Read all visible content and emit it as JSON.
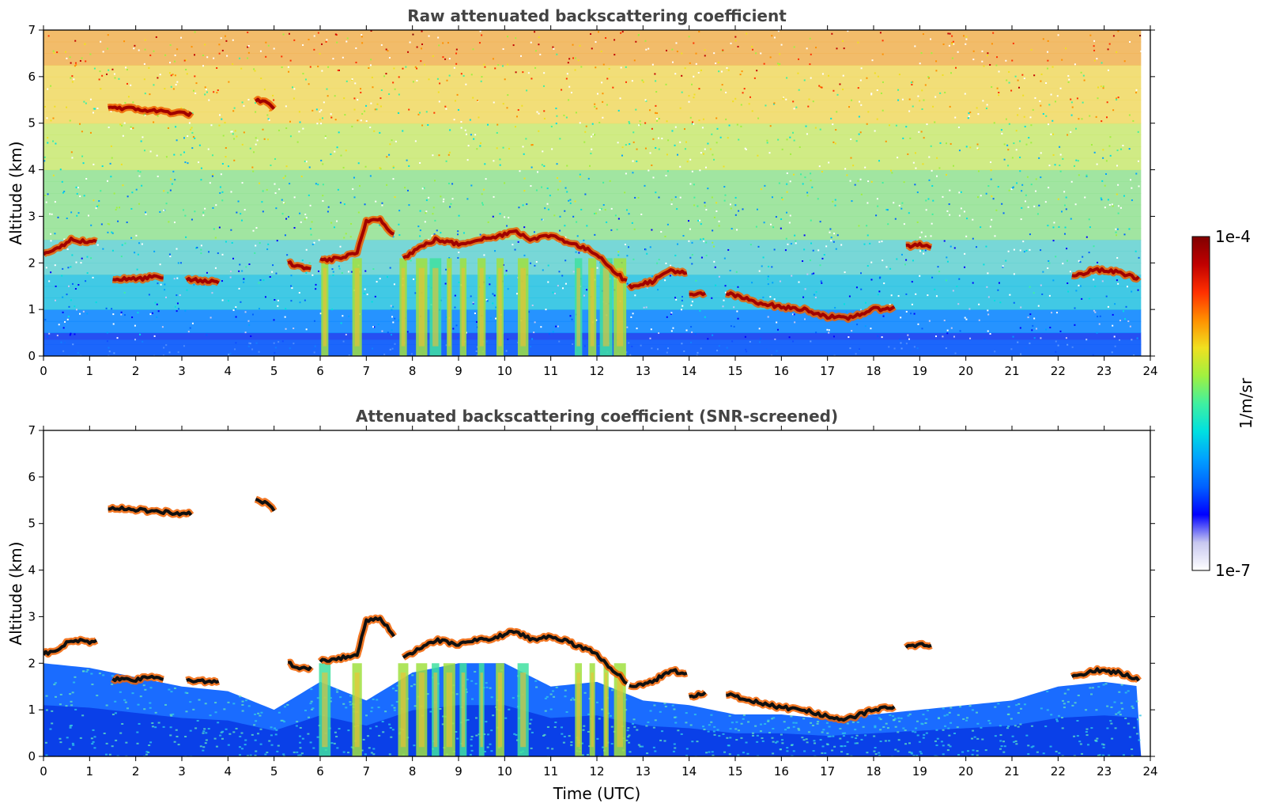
{
  "chart_data": [
    {
      "type": "heatmap",
      "title": "Raw attenuated backscattering coefficient",
      "xlabel": "",
      "ylabel": "Altitude (km)",
      "xlim": [
        0,
        24
      ],
      "ylim": [
        0,
        7
      ],
      "xticks": [
        "0",
        "1",
        "2",
        "3",
        "4",
        "5",
        "6",
        "7",
        "8",
        "9",
        "10",
        "11",
        "12",
        "13",
        "14",
        "15",
        "16",
        "17",
        "18",
        "19",
        "20",
        "21",
        "22",
        "23",
        "24"
      ],
      "yticks": [
        "0",
        "1",
        "2",
        "3",
        "4",
        "5",
        "6",
        "7"
      ],
      "data_extent_x": [
        0,
        23.8
      ],
      "cloud_layers": [
        {
          "t": [
            0.0,
            0.3,
            0.6,
            1.0,
            1.2
          ],
          "alt": [
            2.2,
            2.3,
            2.5,
            2.45,
            2.5
          ]
        },
        {
          "t": [
            1.5,
            2.0,
            2.4,
            2.6
          ],
          "alt": [
            1.65,
            1.65,
            1.7,
            1.65
          ]
        },
        {
          "t": [
            3.1,
            3.5,
            3.8
          ],
          "alt": [
            1.65,
            1.6,
            1.6
          ]
        },
        {
          "t": [
            1.4,
            2.0,
            2.6,
            3.2
          ],
          "alt": [
            5.35,
            5.3,
            5.25,
            5.2
          ]
        },
        {
          "t": [
            4.6,
            4.8,
            5.0
          ],
          "alt": [
            5.5,
            5.45,
            5.3
          ]
        },
        {
          "t": [
            5.3,
            5.6,
            5.8
          ],
          "alt": [
            2.0,
            1.9,
            1.9
          ]
        },
        {
          "t": [
            6.0,
            6.4,
            6.8,
            7.0,
            7.3,
            7.6
          ],
          "alt": [
            2.05,
            2.1,
            2.2,
            2.9,
            2.95,
            2.6
          ]
        },
        {
          "t": [
            7.8,
            8.1,
            8.5,
            9.0,
            9.4,
            9.8,
            10.2,
            10.6,
            11.0,
            11.5,
            12.0,
            12.4,
            12.7
          ],
          "alt": [
            2.1,
            2.3,
            2.5,
            2.4,
            2.5,
            2.55,
            2.7,
            2.5,
            2.6,
            2.4,
            2.2,
            1.8,
            1.55
          ]
        },
        {
          "t": [
            12.7,
            13.2,
            13.6,
            14.0
          ],
          "alt": [
            1.5,
            1.6,
            1.85,
            1.75
          ]
        },
        {
          "t": [
            14.0,
            14.4
          ],
          "alt": [
            1.3,
            1.35
          ]
        },
        {
          "t": [
            14.8,
            15.5,
            16.0,
            16.5,
            17.0,
            17.4,
            18.0,
            18.5
          ],
          "alt": [
            1.35,
            1.15,
            1.05,
            1.0,
            0.85,
            0.8,
            1.0,
            1.05
          ]
        },
        {
          "t": [
            18.7,
            19.0,
            19.3
          ],
          "alt": [
            2.35,
            2.4,
            2.35
          ]
        },
        {
          "t": [
            22.3,
            22.8,
            23.3,
            23.8
          ],
          "alt": [
            1.7,
            1.85,
            1.8,
            1.65
          ]
        }
      ],
      "precip_columns": [
        6.1,
        6.8,
        7.8,
        8.2,
        8.5,
        8.8,
        9.1,
        9.5,
        9.9,
        10.4,
        11.6,
        11.9,
        12.2,
        12.5
      ]
    },
    {
      "type": "heatmap",
      "title": "Attenuated backscattering coefficient (SNR-screened)",
      "xlabel": "Time (UTC)",
      "ylabel": "Altitude (km)",
      "xlim": [
        0,
        24
      ],
      "ylim": [
        0,
        7
      ],
      "xticks": [
        "0",
        "1",
        "2",
        "3",
        "4",
        "5",
        "6",
        "7",
        "8",
        "9",
        "10",
        "11",
        "12",
        "13",
        "14",
        "15",
        "16",
        "17",
        "18",
        "19",
        "20",
        "21",
        "22",
        "23",
        "24"
      ],
      "yticks": [
        "0",
        "1",
        "2",
        "3",
        "4",
        "5",
        "6",
        "7"
      ],
      "data_extent_x": [
        0,
        23.8
      ],
      "boundary_layer_top": {
        "t": [
          0,
          1,
          2,
          3,
          4,
          5,
          6,
          7,
          8,
          9,
          10,
          11,
          12,
          13,
          14,
          15,
          16,
          17,
          18,
          19,
          20,
          21,
          22,
          23,
          23.8
        ],
        "alt": [
          2.0,
          1.9,
          1.7,
          1.5,
          1.4,
          1.0,
          1.6,
          1.2,
          1.8,
          2.0,
          2.0,
          1.5,
          1.6,
          1.2,
          1.1,
          0.9,
          0.9,
          0.8,
          0.9,
          1.0,
          1.1,
          1.2,
          1.5,
          1.6,
          1.5
        ]
      }
    }
  ],
  "colorbar": {
    "label": "1/m/sr",
    "max_label": "1e-4",
    "min_label": "1e-7",
    "colormap": [
      "#ffffff",
      "#c8c8f0",
      "#0000ff",
      "#0060ff",
      "#00a0ff",
      "#00e0e0",
      "#40f0a0",
      "#a0f040",
      "#f0e020",
      "#ff9000",
      "#ff3000",
      "#c00000",
      "#800000"
    ]
  }
}
